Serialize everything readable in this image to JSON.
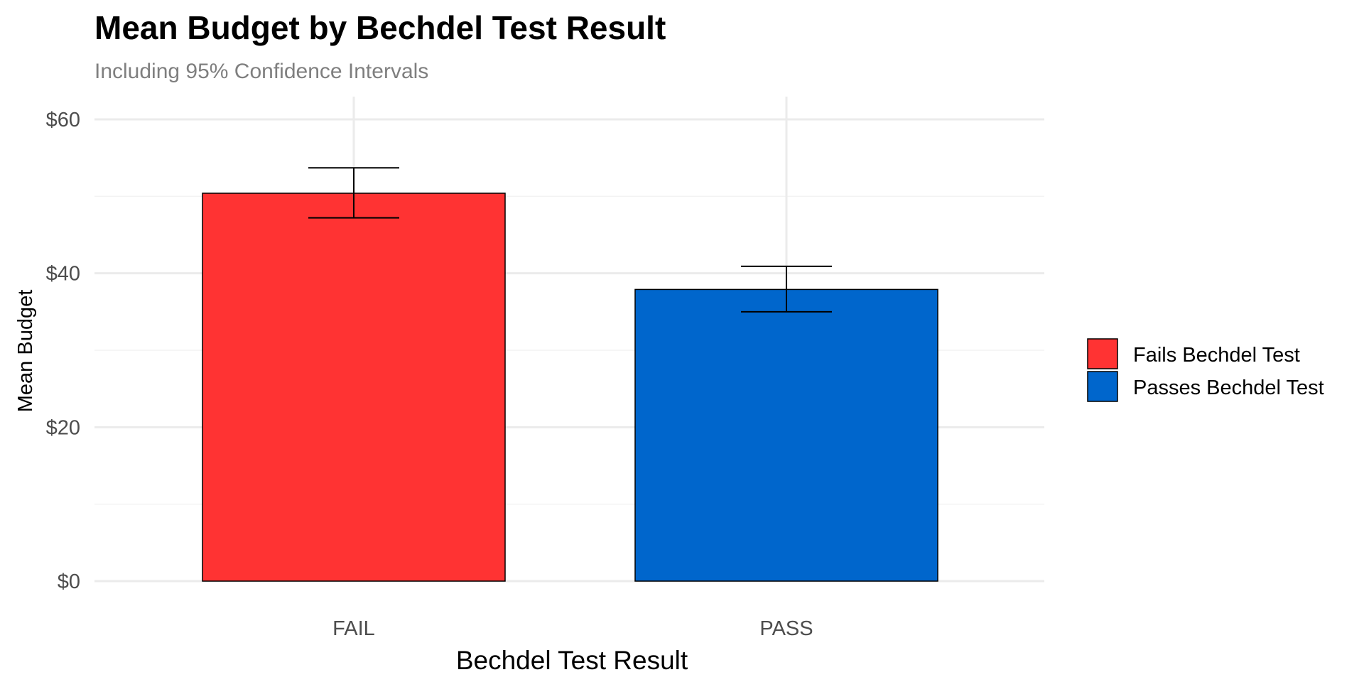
{
  "chart_data": {
    "type": "bar",
    "title": "Mean Budget by Bechdel Test Result",
    "subtitle": "Including 95% Confidence Intervals",
    "xlabel": "Bechdel Test Result",
    "ylabel": "Mean Budget",
    "categories": [
      "FAIL",
      "PASS"
    ],
    "values": [
      50.4,
      37.9
    ],
    "ci_lower": [
      47.2,
      35.0
    ],
    "ci_upper": [
      53.7,
      40.9
    ],
    "bar_colors": [
      "#FF3333",
      "#0066CC"
    ],
    "ylim": [
      0,
      63
    ],
    "yticks": [
      0,
      20,
      40,
      60
    ],
    "ytick_labels": [
      "$0",
      "$20",
      "$40",
      "$60"
    ],
    "grid": true,
    "legend": {
      "placement": "right",
      "entries": [
        {
          "label": "Fails Bechdel Test",
          "color": "#FF3333"
        },
        {
          "label": "Passes Bechdel Test",
          "color": "#0066CC"
        }
      ]
    }
  }
}
